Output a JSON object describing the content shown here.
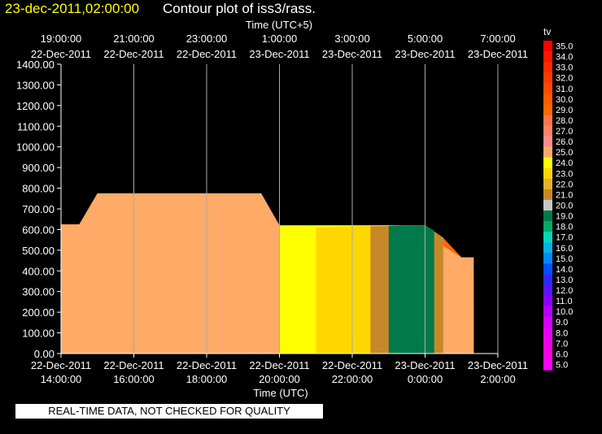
{
  "header": {
    "timestamp": "23-dec-2011,02:00:00",
    "title": "Contour plot of iss3/rass."
  },
  "note": "REAL-TIME DATA, NOT CHECKED FOR QUALITY",
  "colors": {
    "background": "#000000",
    "title_time": "#ffff00",
    "grid": "#aaaaaa",
    "text": "#ffffff"
  },
  "chart_data": {
    "type": "area",
    "title": "Contour plot of iss3/rass.",
    "xlabel_bottom": "Time (UTC)",
    "xlabel_top": "Time (UTC+5)",
    "ylabel": "",
    "ylim": [
      0,
      1400
    ],
    "xlim": [
      "2011-12-22T14:00",
      "2011-12-23T02:20"
    ],
    "grid": true,
    "y_ticks": [
      "0.00",
      "100.00",
      "200.00",
      "300.00",
      "400.00",
      "500.00",
      "600.00",
      "700.00",
      "800.00",
      "900.00",
      "1000.00",
      "1100.00",
      "1200.00",
      "1300.00",
      "1400.00"
    ],
    "x_ticks_bottom": [
      {
        "date": "22-Dec-2011",
        "time": "14:00:00"
      },
      {
        "date": "22-Dec-2011",
        "time": "16:00:00"
      },
      {
        "date": "22-Dec-2011",
        "time": "18:00:00"
      },
      {
        "date": "22-Dec-2011",
        "time": "20:00:00"
      },
      {
        "date": "22-Dec-2011",
        "time": "22:00:00"
      },
      {
        "date": "23-Dec-2011",
        "time": "0:00:00"
      },
      {
        "date": "23-Dec-2011",
        "time": "2:00:00"
      }
    ],
    "x_ticks_top": [
      {
        "time": "19:00:00",
        "date": "22-Dec-2011"
      },
      {
        "time": "21:00:00",
        "date": "22-Dec-2011"
      },
      {
        "time": "23:00:00",
        "date": "22-Dec-2011"
      },
      {
        "time": "1:00:00",
        "date": "23-Dec-2011"
      },
      {
        "time": "3:00:00",
        "date": "23-Dec-2011"
      },
      {
        "time": "5:00:00",
        "date": "23-Dec-2011"
      },
      {
        "time": "7:00:00",
        "date": "23-Dec-2011"
      }
    ],
    "colorbar": {
      "label": "tv",
      "levels": [
        {
          "label": "35.0",
          "color": "#ff0000"
        },
        {
          "label": "34.0",
          "color": "#ff1500"
        },
        {
          "label": "33.0",
          "color": "#ff2a00"
        },
        {
          "label": "32.0",
          "color": "#ff3a00"
        },
        {
          "label": "31.0",
          "color": "#ff4a00"
        },
        {
          "label": "30.0",
          "color": "#ff5a00"
        },
        {
          "label": "29.0",
          "color": "#ff6600"
        },
        {
          "label": "28.0",
          "color": "#ff7544"
        },
        {
          "label": "27.0",
          "color": "#ff8266"
        },
        {
          "label": "26.0",
          "color": "#ff8c8c"
        },
        {
          "label": "25.0",
          "color": "#ffaa66"
        },
        {
          "label": "24.0",
          "color": "#ffff00"
        },
        {
          "label": "23.0",
          "color": "#ffd700"
        },
        {
          "label": "22.0",
          "color": "#e8b22a"
        },
        {
          "label": "21.0",
          "color": "#c8882a"
        },
        {
          "label": "20.0",
          "color": "#c8c8c8"
        },
        {
          "label": "19.0",
          "color": "#007a4a"
        },
        {
          "label": "18.0",
          "color": "#00aa66"
        },
        {
          "label": "17.0",
          "color": "#00d8b8"
        },
        {
          "label": "16.0",
          "color": "#00b4e6"
        },
        {
          "label": "15.0",
          "color": "#0088ff"
        },
        {
          "label": "14.0",
          "color": "#0050ff"
        },
        {
          "label": "13.0",
          "color": "#2a2aff"
        },
        {
          "label": "12.0",
          "color": "#5a14ff"
        },
        {
          "label": "11.0",
          "color": "#8a00ff"
        },
        {
          "label": "10.0",
          "color": "#b400ff"
        },
        {
          "label": "9.0",
          "color": "#d200ff"
        },
        {
          "label": "8.0",
          "color": "#e600f0"
        },
        {
          "label": "7.0",
          "color": "#f000e8"
        },
        {
          "label": "6.0",
          "color": "#f800e0"
        },
        {
          "label": "5.0",
          "color": "#ff00ff"
        }
      ]
    },
    "series": [
      {
        "value": 29.0,
        "color": "#ff6600",
        "x": [
          "2011-12-22T14:00",
          "2011-12-22T14:30",
          "2011-12-22T15:00",
          "2011-12-22T15:30",
          "2011-12-22T16:00",
          "2011-12-22T16:30",
          "2011-12-22T17:00",
          "2011-12-22T17:30",
          "2011-12-22T18:00",
          "2011-12-22T18:30",
          "2011-12-22T19:00",
          "2011-12-22T19:30",
          "2011-12-22T20:00",
          "2011-12-22T20:30",
          "2011-12-22T21:00",
          "2011-12-22T21:30",
          "2011-12-22T22:00",
          "2011-12-22T22:30",
          "2011-12-22T23:00",
          "2011-12-22T23:30",
          "2011-12-23T00:00",
          "2011-12-23T00:30",
          "2011-12-23T01:00",
          "2011-12-23T01:20"
        ],
        "top": [
          625,
          625,
          775,
          775,
          775,
          775,
          775,
          775,
          775,
          775,
          775,
          775,
          620,
          620,
          620,
          620,
          620,
          620,
          620,
          620,
          620,
          560,
          465,
          465
        ]
      },
      {
        "value": 28.0,
        "color": "#ff7544",
        "x": [
          "2011-12-22T14:00",
          "2011-12-22T14:30",
          "2011-12-22T15:00",
          "2011-12-22T15:30",
          "2011-12-22T16:00",
          "2011-12-22T16:30",
          "2011-12-22T17:00",
          "2011-12-22T17:30",
          "2011-12-22T18:00",
          "2011-12-22T18:30",
          "2011-12-22T19:00",
          "2011-12-22T19:30",
          "2011-12-22T20:00",
          "2011-12-22T20:30",
          "2011-12-22T21:00",
          "2011-12-22T21:30",
          "2011-12-22T22:00",
          "2011-12-22T22:30",
          "2011-12-22T23:00",
          "2011-12-22T23:30",
          "2011-12-23T00:00",
          "2011-12-23T00:30",
          "2011-12-23T01:00",
          "2011-12-23T01:20"
        ],
        "top": [
          270,
          250,
          270,
          240,
          340,
          320,
          300,
          260,
          300,
          280,
          300,
          290,
          280,
          300,
          290,
          310,
          300,
          280,
          300,
          270,
          280,
          300,
          300,
          250
        ]
      },
      {
        "value": 27.0,
        "color": "#ff8266",
        "x": [
          "2011-12-22T14:00",
          "2011-12-22T14:30",
          "2011-12-22T15:00",
          "2011-12-22T15:30",
          "2011-12-22T16:00",
          "2011-12-22T16:30",
          "2011-12-22T17:00",
          "2011-12-22T17:30",
          "2011-12-22T18:00",
          "2011-12-22T18:30",
          "2011-12-22T19:00",
          "2011-12-22T19:30",
          "2011-12-22T20:00",
          "2011-12-22T20:30",
          "2011-12-22T21:00",
          "2011-12-22T21:30",
          "2011-12-22T22:00",
          "2011-12-22T22:30",
          "2011-12-22T23:00",
          "2011-12-22T23:30",
          "2011-12-23T00:00",
          "2011-12-23T00:30",
          "2011-12-23T01:00",
          "2011-12-23T01:20"
        ],
        "top": [
          470,
          440,
          470,
          450,
          480,
          460,
          440,
          430,
          470,
          420,
          450,
          400,
          440,
          400,
          430,
          410,
          420,
          400,
          420,
          400,
          400,
          420,
          400,
          380
        ]
      },
      {
        "value": 26.0,
        "color": "#ff8c8c",
        "x": [
          "2011-12-22T14:00",
          "2011-12-22T14:30",
          "2011-12-22T15:00",
          "2011-12-22T15:30",
          "2011-12-22T16:00",
          "2011-12-22T16:30",
          "2011-12-22T17:00",
          "2011-12-22T17:30",
          "2011-12-22T18:00",
          "2011-12-22T18:30",
          "2011-12-22T19:00",
          "2011-12-22T19:30",
          "2011-12-22T20:00",
          "2011-12-22T20:30",
          "2011-12-22T21:00",
          "2011-12-22T21:30",
          "2011-12-22T22:00",
          "2011-12-22T22:30",
          "2011-12-22T23:00",
          "2011-12-22T23:30",
          "2011-12-23T00:00",
          "2011-12-23T00:30",
          "2011-12-23T01:00",
          "2011-12-23T01:20"
        ],
        "top": [
          625,
          625,
          660,
          680,
          720,
          700,
          690,
          680,
          660,
          650,
          640,
          620,
          600,
          590,
          580,
          570,
          560,
          550,
          540,
          520,
          510,
          500,
          465,
          465
        ]
      },
      {
        "value": 25.0,
        "color": "#ffaa66",
        "x": [
          "2011-12-22T14:00",
          "2011-12-22T14:30",
          "2011-12-22T15:00",
          "2011-12-22T15:30",
          "2011-12-22T16:00",
          "2011-12-22T16:30",
          "2011-12-22T17:00",
          "2011-12-22T17:30",
          "2011-12-22T18:00",
          "2011-12-22T18:30",
          "2011-12-22T19:00",
          "2011-12-22T19:30",
          "2011-12-22T20:00",
          "2011-12-22T20:30",
          "2011-12-22T21:00",
          "2011-12-22T21:30",
          "2011-12-22T22:00",
          "2011-12-22T22:30",
          "2011-12-22T23:00",
          "2011-12-22T23:30",
          "2011-12-23T00:00",
          "2011-12-23T00:30",
          "2011-12-23T01:00",
          "2011-12-23T01:20"
        ],
        "top": [
          625,
          625,
          775,
          775,
          775,
          775,
          775,
          775,
          775,
          775,
          775,
          775,
          620,
          600,
          590,
          580,
          570,
          560,
          560,
          550,
          540,
          520,
          465,
          465
        ]
      },
      {
        "value": 24.0,
        "color": "#ffff00",
        "x": [
          "2011-12-22T20:00",
          "2011-12-22T20:30",
          "2011-12-22T21:00",
          "2011-12-22T21:30",
          "2011-12-22T22:00",
          "2011-12-22T22:30",
          "2011-12-22T23:00",
          "2011-12-22T23:30",
          "2011-12-23T00:00",
          "2011-12-23T00:30"
        ],
        "top": [
          620,
          620,
          620,
          620,
          620,
          620,
          620,
          620,
          620,
          560
        ]
      },
      {
        "value": 23.0,
        "color": "#ffd700",
        "x": [
          "2011-12-22T21:00",
          "2011-12-22T21:30",
          "2011-12-22T22:00",
          "2011-12-22T22:30",
          "2011-12-22T23:00",
          "2011-12-22T23:30",
          "2011-12-23T00:00",
          "2011-12-23T00:30"
        ],
        "top": [
          610,
          612,
          615,
          617,
          618,
          618,
          618,
          560
        ]
      },
      {
        "value": 21.0,
        "color": "#c8882a",
        "x": [
          "2011-12-22T22:30",
          "2011-12-22T23:00",
          "2011-12-22T23:30",
          "2011-12-23T00:00",
          "2011-12-23T00:30"
        ],
        "top": [
          616,
          617,
          618,
          618,
          560
        ]
      },
      {
        "value": 19.0,
        "color": "#007a4a",
        "x": [
          "2011-12-22T23:00",
          "2011-12-22T23:30",
          "2011-12-23T00:00",
          "2011-12-23T00:15"
        ],
        "top": [
          618,
          620,
          620,
          595
        ]
      }
    ]
  }
}
